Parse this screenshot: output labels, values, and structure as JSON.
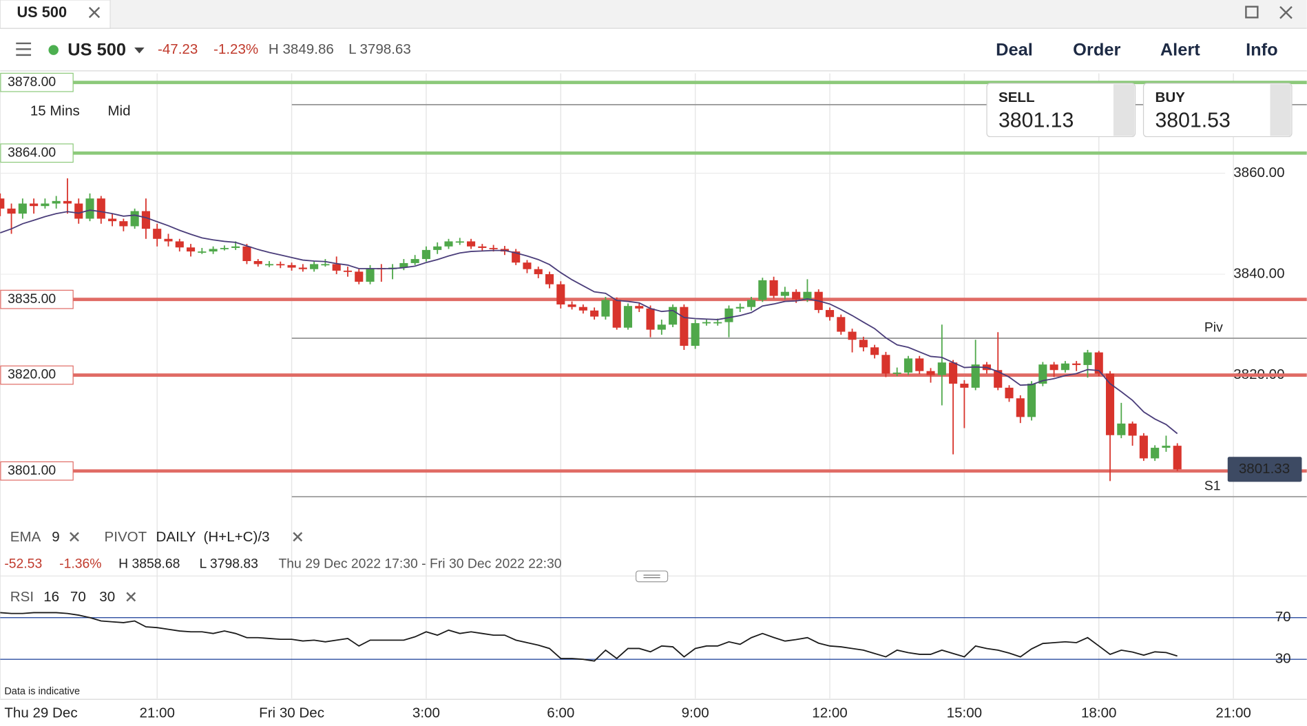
{
  "tab": {
    "title": "US 500"
  },
  "toolbar": {
    "instrument": "US 500",
    "change": "-47.23",
    "change_pct": "-1.23%",
    "high": "H 3849.86",
    "low": "L 3798.63",
    "menu": [
      "Deal",
      "Order",
      "Alert",
      "Info"
    ]
  },
  "quote": {
    "sell_label": "SELL",
    "sell": "3801.13",
    "buy_label": "BUY",
    "buy": "3801.53"
  },
  "chart_settings": {
    "interval": "15 Mins",
    "price_type": "Mid"
  },
  "indicators": {
    "ema": "EMA",
    "ema_period": "9",
    "pivot": "PIVOT",
    "pivot_period": "DAILY",
    "pivot_formula": "(H+L+C)/3"
  },
  "summary": {
    "change": "-52.53",
    "change_pct": "-1.36%",
    "high": "H 3858.68",
    "low": "L 3798.83",
    "range": "Thu 29 Dec 2022 17:30 - Fri 30 Dec 2022 22:30"
  },
  "disclaimer": "Data is indicative",
  "chart_data": [
    {
      "type": "candlestick",
      "x": [
        17.5,
        17.75,
        18,
        18.25,
        18.5,
        18.75,
        19,
        19.25,
        19.5,
        19.75,
        20,
        20.25,
        20.5,
        20.75,
        21,
        21.25,
        21.5,
        21.75,
        22,
        22.25,
        22.5,
        22.75,
        23,
        23.25,
        23.5,
        23.75,
        24,
        24.25,
        24.5,
        24.75,
        25,
        25.25,
        25.5,
        25.75,
        26,
        26.25,
        26.5,
        26.75,
        27,
        27.25,
        27.5,
        27.75,
        28,
        28.25,
        28.5,
        28.75,
        29,
        29.25,
        29.5,
        29.75,
        30,
        30.25,
        30.5,
        30.75,
        31,
        31.25,
        31.5,
        31.75,
        32,
        32.25,
        32.5,
        32.75,
        33,
        33.25,
        33.5,
        33.75,
        34,
        34.25,
        34.5,
        34.75,
        35,
        35.25,
        35.5,
        35.75,
        36,
        36.25,
        36.5,
        36.75,
        37,
        37.25,
        37.5,
        37.75,
        38,
        38.25,
        38.5,
        38.75,
        39,
        39.25,
        39.5,
        39.75,
        40,
        40.25,
        40.5,
        40.75,
        41,
        41.25,
        41.5,
        41.75,
        42,
        42.25,
        42.5,
        42.75,
        43,
        43.25,
        43.5,
        43.75
      ],
      "open": [
        3855,
        3853,
        3852,
        3854,
        3853.5,
        3854,
        3854.5,
        3854,
        3851,
        3855,
        3851,
        3850.5,
        3849.5,
        3852.5,
        3849,
        3847,
        3846.5,
        3845.3,
        3844.5,
        3844.5,
        3845,
        3845.2,
        3845.5,
        3842.6,
        3842,
        3842,
        3841.8,
        3841.3,
        3841,
        3842,
        3842,
        3840.7,
        3840.5,
        3838.5,
        3841.2,
        3841,
        3841.3,
        3842.2,
        3843,
        3844.8,
        3845.5,
        3846.5,
        3846.5,
        3845.5,
        3845.2,
        3845,
        3844.5,
        3842.3,
        3841,
        3840,
        3838,
        3834,
        3833.5,
        3832.8,
        3831.6,
        3834.9,
        3829.4,
        3833.7,
        3833.2,
        3829,
        3830,
        3833.5,
        3825.8,
        3830.3,
        3830.5,
        3830.5,
        3833.2,
        3833.5,
        3834.9,
        3838.8,
        3835.7,
        3836.5,
        3835,
        3836.5,
        3832.9,
        3831.5,
        3828.6,
        3827,
        3825.5,
        3824,
        3820.3,
        3820.5,
        3823.3,
        3820.8,
        3820,
        3822.5,
        3818.3,
        3817.5,
        3822.1,
        3821,
        3817.5,
        3815.4,
        3811.7,
        3818.3,
        3822.1,
        3821,
        3822.3,
        3822,
        3824.5,
        3820.3,
        3808.1,
        3810.4,
        3808,
        3803.5,
        3805.6,
        3806
      ],
      "high": [
        3856,
        3854,
        3855,
        3855,
        3855,
        3855.5,
        3859,
        3855,
        3856,
        3855.5,
        3852,
        3851,
        3853,
        3855,
        3850,
        3848,
        3847,
        3846,
        3845.2,
        3845.5,
        3845.7,
        3846.5,
        3846,
        3843,
        3842.6,
        3842.5,
        3842.3,
        3842,
        3842.5,
        3843,
        3843.5,
        3841.5,
        3841,
        3841.8,
        3842,
        3842,
        3843,
        3843.8,
        3845.5,
        3846.3,
        3847,
        3847.2,
        3847,
        3846,
        3845.8,
        3845.6,
        3845,
        3842.8,
        3841.5,
        3840.5,
        3838.6,
        3834.6,
        3834,
        3833.4,
        3835.5,
        3835.4,
        3834.2,
        3834.2,
        3833.8,
        3831,
        3834,
        3834,
        3831,
        3831.2,
        3831.2,
        3833.8,
        3834.2,
        3835.5,
        3839.3,
        3839.5,
        3837.5,
        3837,
        3839,
        3837,
        3833.4,
        3832,
        3829.2,
        3827.6,
        3826,
        3824.6,
        3821.5,
        3823.8,
        3823.8,
        3821.4,
        3830,
        3823,
        3819,
        3827,
        3822.6,
        3828.5,
        3818,
        3816,
        3818.8,
        3822.6,
        3822.6,
        3822.8,
        3822.8,
        3825,
        3824.8,
        3820.8,
        3814.5,
        3810.8,
        3808.5,
        3806.1,
        3808,
        3806.5
      ],
      "low": [
        3851.5,
        3848,
        3851,
        3852,
        3853,
        3853,
        3852,
        3850,
        3850.5,
        3850,
        3849.5,
        3848.5,
        3849,
        3847,
        3845.5,
        3845.5,
        3844.5,
        3843.5,
        3844,
        3844,
        3844.7,
        3844.8,
        3842,
        3841.5,
        3841.4,
        3841.2,
        3840.7,
        3840.5,
        3840.5,
        3841.5,
        3840,
        3839.5,
        3838,
        3838,
        3838.5,
        3839,
        3840.8,
        3841.8,
        3842.5,
        3844,
        3845,
        3845.8,
        3845,
        3844.7,
        3844.5,
        3843.8,
        3841.8,
        3840.2,
        3839.2,
        3837.2,
        3833.2,
        3833,
        3832.2,
        3831,
        3831,
        3829,
        3829,
        3832.5,
        3827.5,
        3828,
        3829.5,
        3825,
        3825.2,
        3829.8,
        3829.8,
        3827.5,
        3832.5,
        3832.8,
        3834.5,
        3835.2,
        3835,
        3834.3,
        3834.5,
        3832.3,
        3830.8,
        3828,
        3824.5,
        3824.7,
        3823.3,
        3819.6,
        3819.8,
        3820,
        3820.2,
        3818.5,
        3814,
        3804.3,
        3809.5,
        3817,
        3820.3,
        3817,
        3814.7,
        3810.5,
        3811,
        3817.8,
        3819.6,
        3820.5,
        3820.8,
        3819.5,
        3819.8,
        3799,
        3807.5,
        3806,
        3803,
        3803,
        3804.8,
        3801
      ],
      "close": [
        3853,
        3852,
        3854,
        3853.5,
        3854,
        3854.5,
        3854,
        3851,
        3855,
        3851,
        3850.5,
        3849.5,
        3852.5,
        3849,
        3847,
        3846.5,
        3845.3,
        3844.5,
        3844.5,
        3845,
        3845.2,
        3845.5,
        3842.6,
        3842,
        3842,
        3841.8,
        3841.3,
        3841,
        3842,
        3842,
        3840.7,
        3840.5,
        3838.5,
        3841.2,
        3841,
        3841.3,
        3842.2,
        3843,
        3844.8,
        3845.5,
        3846.5,
        3846.5,
        3845.5,
        3845.2,
        3845,
        3844.5,
        3842.3,
        3841,
        3840,
        3838,
        3834,
        3833.5,
        3832.8,
        3831.6,
        3834.9,
        3829.4,
        3833.7,
        3833.2,
        3829,
        3830,
        3833.5,
        3825.8,
        3830.3,
        3830.5,
        3830.5,
        3833.2,
        3833.5,
        3834.9,
        3838.8,
        3835.7,
        3836.5,
        3835,
        3836.5,
        3832.9,
        3831.5,
        3828.6,
        3827,
        3825.5,
        3824,
        3820.3,
        3820.5,
        3823.3,
        3820.8,
        3820,
        3822.5,
        3818.3,
        3817.5,
        3822.1,
        3821,
        3817.5,
        3815.4,
        3811.7,
        3818.3,
        3822.1,
        3821,
        3822.3,
        3822,
        3824.5,
        3820.3,
        3808.1,
        3810.4,
        3808,
        3803.5,
        3805.6,
        3806,
        3801.33
      ],
      "up_color": "#4fa84a",
      "down_color": "#d8342c",
      "ema": {
        "color": "#4a3d7a",
        "values": [
          3848.2,
          3849.0,
          3850.0,
          3850.7,
          3851.4,
          3852.0,
          3852.4,
          3852.1,
          3852.7,
          3852.4,
          3852.0,
          3851.5,
          3851.7,
          3851.2,
          3850.4,
          3849.6,
          3848.7,
          3847.9,
          3847.2,
          3846.8,
          3846.5,
          3846.3,
          3845.6,
          3844.9,
          3844.3,
          3843.8,
          3843.3,
          3842.8,
          3842.6,
          3842.5,
          3842.1,
          3841.8,
          3841.1,
          3841.1,
          3841.1,
          3841.1,
          3841.3,
          3841.6,
          3842.3,
          3842.9,
          3843.6,
          3844.2,
          3844.5,
          3844.6,
          3844.7,
          3844.7,
          3844.2,
          3843.6,
          3842.9,
          3841.9,
          3840.3,
          3838.9,
          3837.7,
          3836.5,
          3836.2,
          3834.8,
          3834.6,
          3834.3,
          3833.2,
          3832.6,
          3832.8,
          3831.4,
          3831.2,
          3831.1,
          3831.0,
          3831.4,
          3831.8,
          3832.4,
          3833.7,
          3834.1,
          3834.6,
          3834.7,
          3835.1,
          3834.7,
          3834.1,
          3833.0,
          3831.8,
          3830.5,
          3829.2,
          3827.4,
          3826.0,
          3825.5,
          3824.6,
          3823.7,
          3823.5,
          3822.5,
          3821.5,
          3821.6,
          3821.5,
          3820.7,
          3819.6,
          3818.0,
          3818.1,
          3818.9,
          3819.3,
          3819.9,
          3820.3,
          3821.1,
          3820.9,
          3818.3,
          3816.7,
          3815.0,
          3812.7,
          3811.3,
          3810.2,
          3808.4
        ]
      },
      "levels": [
        {
          "value": 3878,
          "label": "3878.00",
          "color": "#8cc97a"
        },
        {
          "value": 3864,
          "label": "3864.00",
          "color": "#8cc97a"
        },
        {
          "value": 3835,
          "label": "3835.00",
          "color": "#e06b65"
        },
        {
          "value": 3820,
          "label": "3820.00",
          "color": "#e06b65"
        },
        {
          "value": 3801,
          "label": "3801.00",
          "color": "#e06b65"
        }
      ],
      "pivots": [
        {
          "value": 3873.6
        },
        {
          "value": 3827.3,
          "label": "Piv"
        },
        {
          "value": 3795.9,
          "label": "S1"
        }
      ],
      "last_price": 3801.33,
      "xlim": [
        17.5,
        46.6
      ],
      "ylim": [
        3790.6,
        3879.8
      ],
      "yticks": [
        {
          "value": 3820,
          "label": "3820.00"
        },
        {
          "value": 3840,
          "label": "3840.00"
        },
        {
          "value": 3860,
          "label": "3860.00"
        }
      ],
      "xticks": [
        {
          "value": 17.5,
          "label": "Thu 29 Dec"
        },
        {
          "value": 21,
          "label": "21:00"
        },
        {
          "value": 24,
          "label": "Fri 30 Dec"
        },
        {
          "value": 27,
          "label": "3:00"
        },
        {
          "value": 30,
          "label": "6:00"
        },
        {
          "value": 33,
          "label": "9:00"
        },
        {
          "value": 36,
          "label": "12:00"
        },
        {
          "value": 39,
          "label": "15:00"
        },
        {
          "value": 42,
          "label": "18:00"
        },
        {
          "value": 45,
          "label": "21:00"
        }
      ],
      "grid": true
    },
    {
      "type": "line",
      "title": "RSI",
      "params": [
        "16",
        "70",
        "30"
      ],
      "color": "#1a1a1a",
      "values": [
        74.8,
        74,
        74,
        74.8,
        74.8,
        74.8,
        74,
        72.4,
        70,
        66.8,
        66,
        65.2,
        66.8,
        61.2,
        60.4,
        58.8,
        57.2,
        56.4,
        56.4,
        54.8,
        57.2,
        54.8,
        50.8,
        50.8,
        50,
        49.2,
        49.2,
        47.6,
        48.4,
        46.8,
        48.4,
        50,
        42.8,
        48.4,
        48.4,
        48.4,
        48.4,
        51.6,
        56.4,
        53.2,
        58,
        54.8,
        56.4,
        54.8,
        53.2,
        53.2,
        48.4,
        46,
        43.6,
        40.4,
        30.8,
        30.8,
        30,
        28.4,
        38.8,
        30.8,
        40.4,
        40.4,
        37.2,
        42.8,
        42,
        32.4,
        40.4,
        42.8,
        42.8,
        46.8,
        44.4,
        50.8,
        54.8,
        51,
        47.5,
        49,
        50.8,
        45.5,
        42.8,
        42,
        40.4,
        38.8,
        35.6,
        32.4,
        38.8,
        36.4,
        34.8,
        34.8,
        38.8,
        35.6,
        32.4,
        42.8,
        40.4,
        38.8,
        36,
        32.4,
        40,
        45.2,
        46,
        46.8,
        46,
        50.8,
        42.8,
        34.8,
        38.8,
        37,
        34,
        37.2,
        36.5,
        33.2
      ],
      "ylim": [
        -1.2,
        98.8
      ],
      "yticks": [
        30,
        70
      ],
      "tick_color": "#2b4da0"
    }
  ]
}
